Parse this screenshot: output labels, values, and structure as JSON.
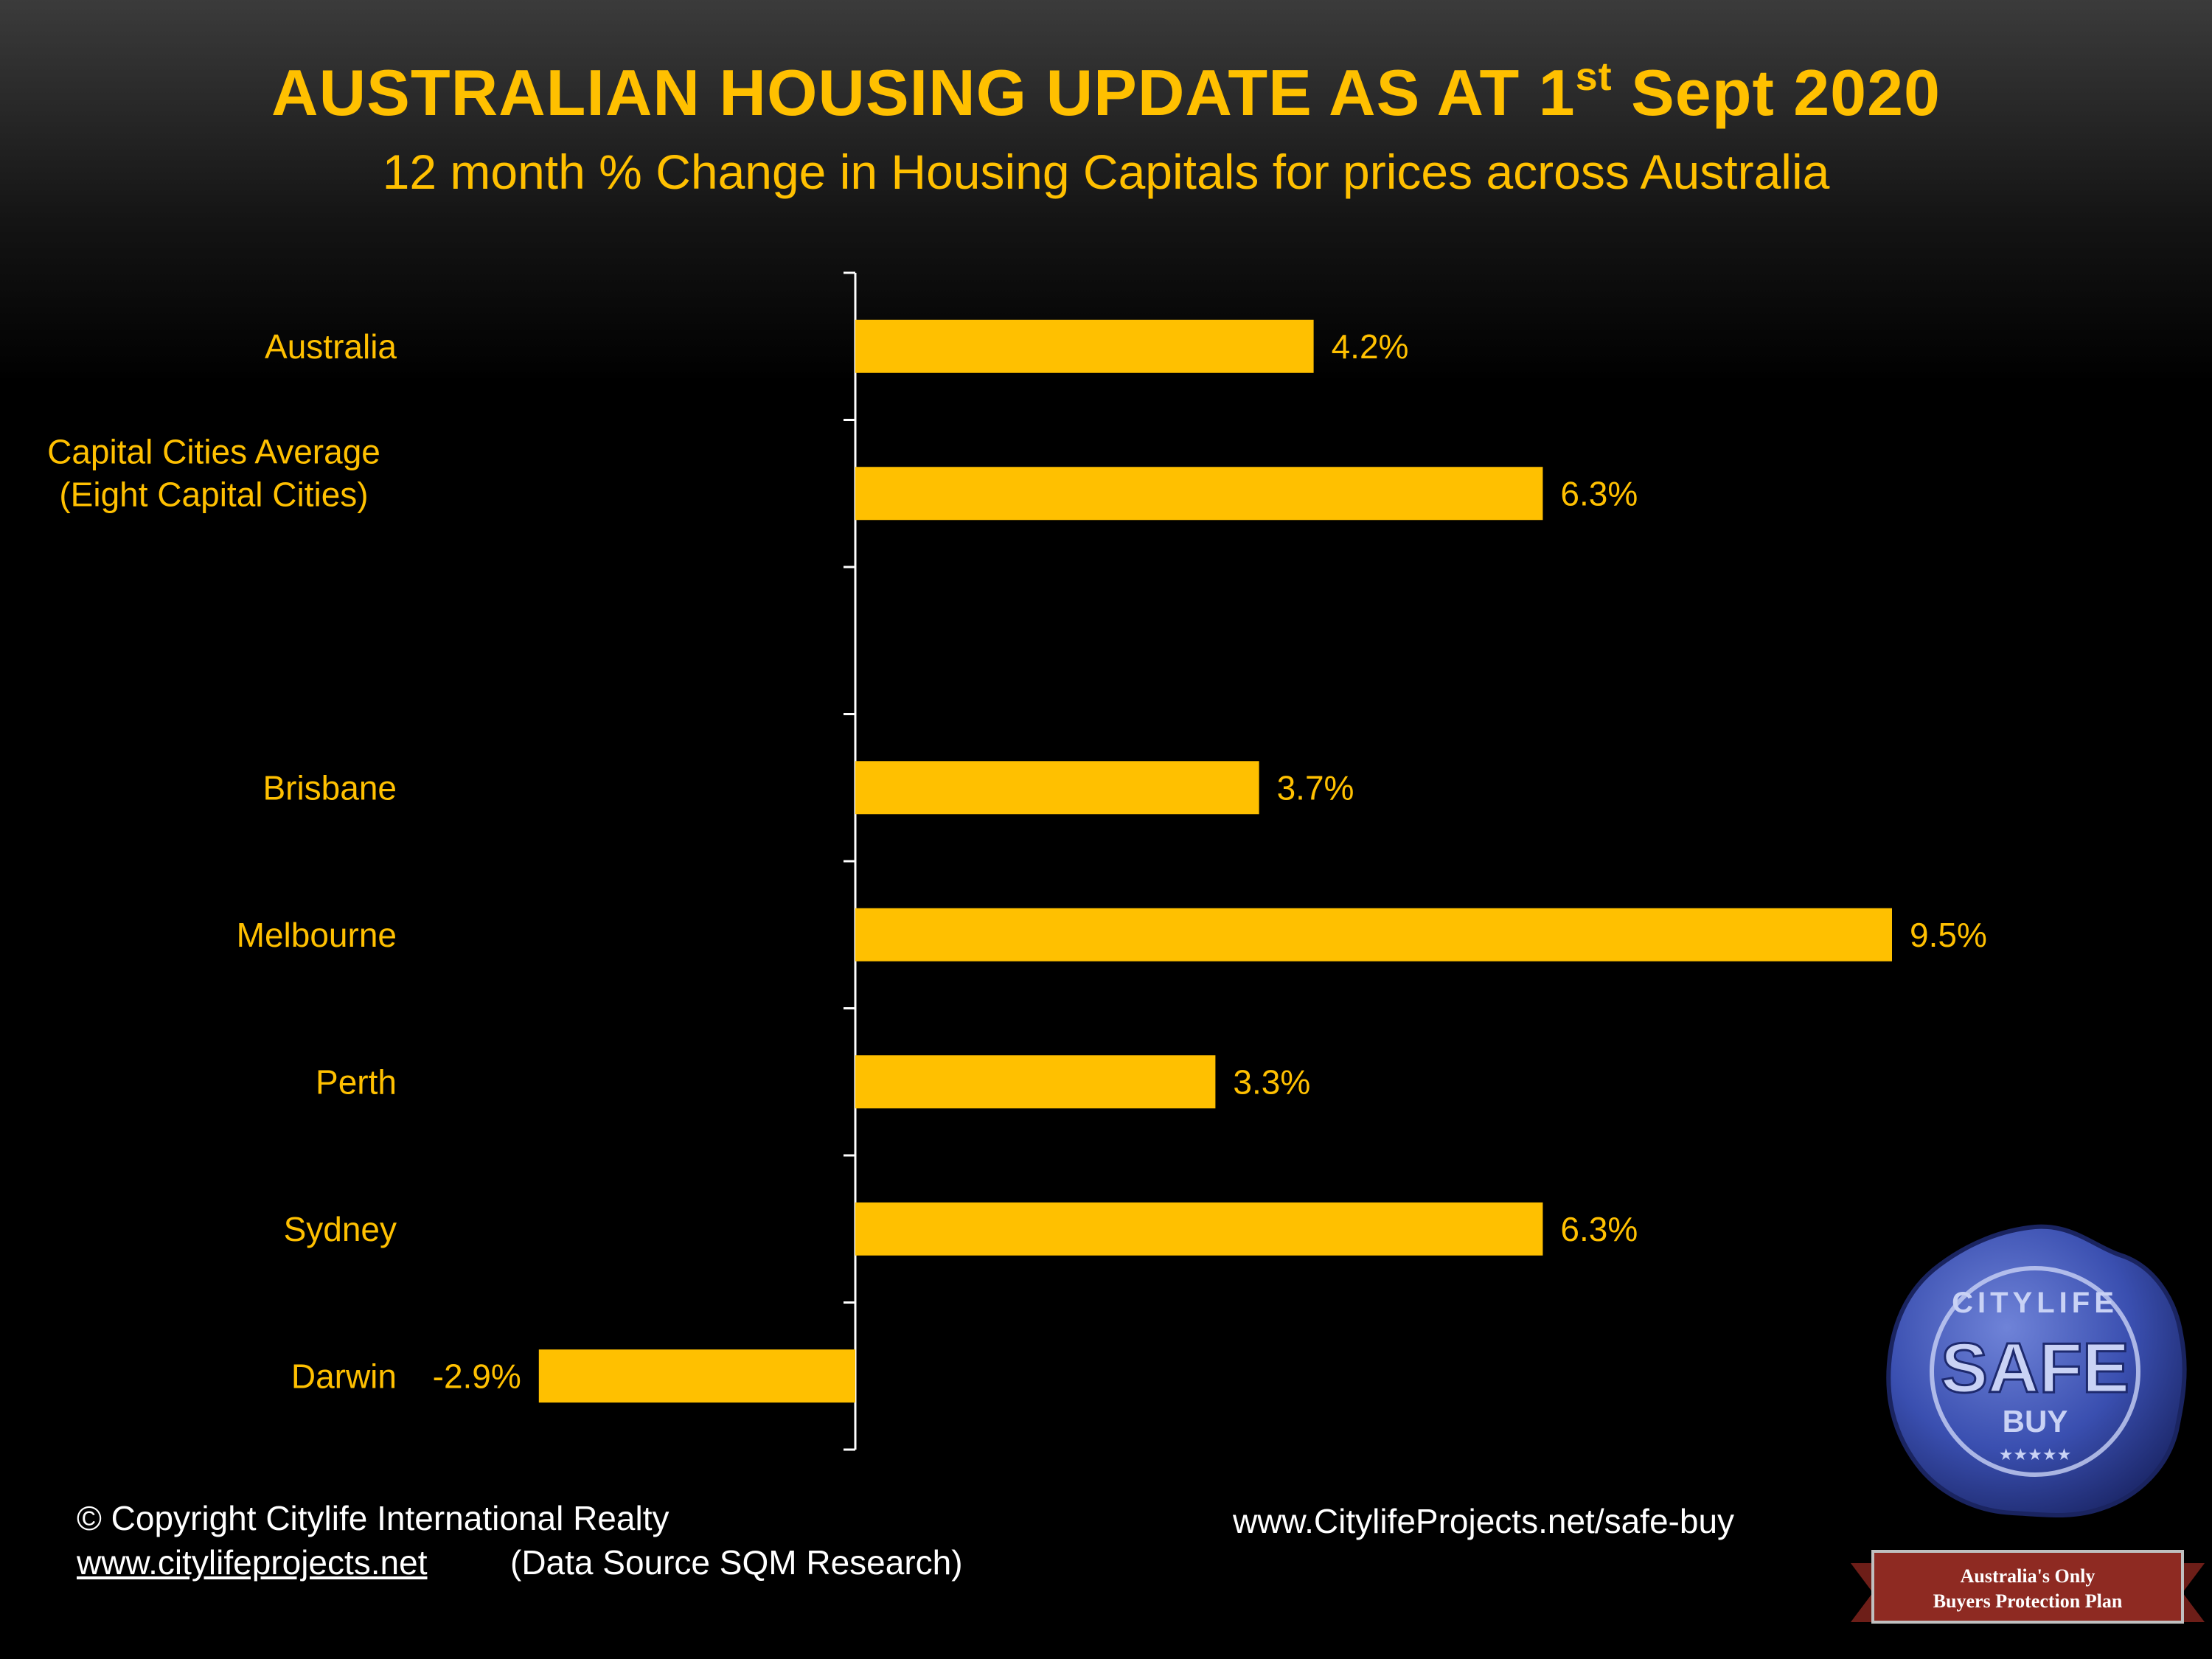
{
  "header": {
    "title_main": "AUSTRALIAN HOUSING UPDATE AS AT 1",
    "title_sup": "st",
    "title_end": " Sept 2020",
    "subtitle": "12 month % Change in Housing Capitals for prices across Australia"
  },
  "chart_data": {
    "type": "bar",
    "orientation": "horizontal",
    "categories": [
      [
        "Australia"
      ],
      [
        "Capital Cities Average",
        "(Eight Capital Cities)"
      ],
      [
        ""
      ],
      [
        "Brisbane"
      ],
      [
        "Melbourne"
      ],
      [
        "Perth"
      ],
      [
        "Sydney"
      ],
      [
        "Darwin"
      ]
    ],
    "values": [
      4.2,
      6.3,
      null,
      3.7,
      9.5,
      3.3,
      6.3,
      -2.9
    ],
    "data_labels": [
      "4.2%",
      "6.3%",
      "",
      "3.7%",
      "9.5%",
      "3.3%",
      "6.3%",
      "-2.9%"
    ],
    "unit": "%",
    "bar_color": "#FFC000",
    "label_color": "#FFC000",
    "axis_color": "#FFFFFF",
    "grid": false,
    "legend": "none"
  },
  "footer": {
    "copyright": "© Copyright Citylife International Realty",
    "website": "www.citylifeprojects.net",
    "data_source": "(Data Source SQM Research)",
    "safebuy_url": "www.CitylifeProjects.net/safe-buy"
  },
  "badge": {
    "seal_top": "CITYLIFE",
    "seal_main": "SAFE",
    "seal_sub": "BUY",
    "seal_stars": "★★★★★",
    "ribbon_line1": "Australia's Only",
    "ribbon_line2": "Buyers Protection Plan",
    "seal_color": "#3a4fb0",
    "ribbon_color": "#8e2a22"
  }
}
